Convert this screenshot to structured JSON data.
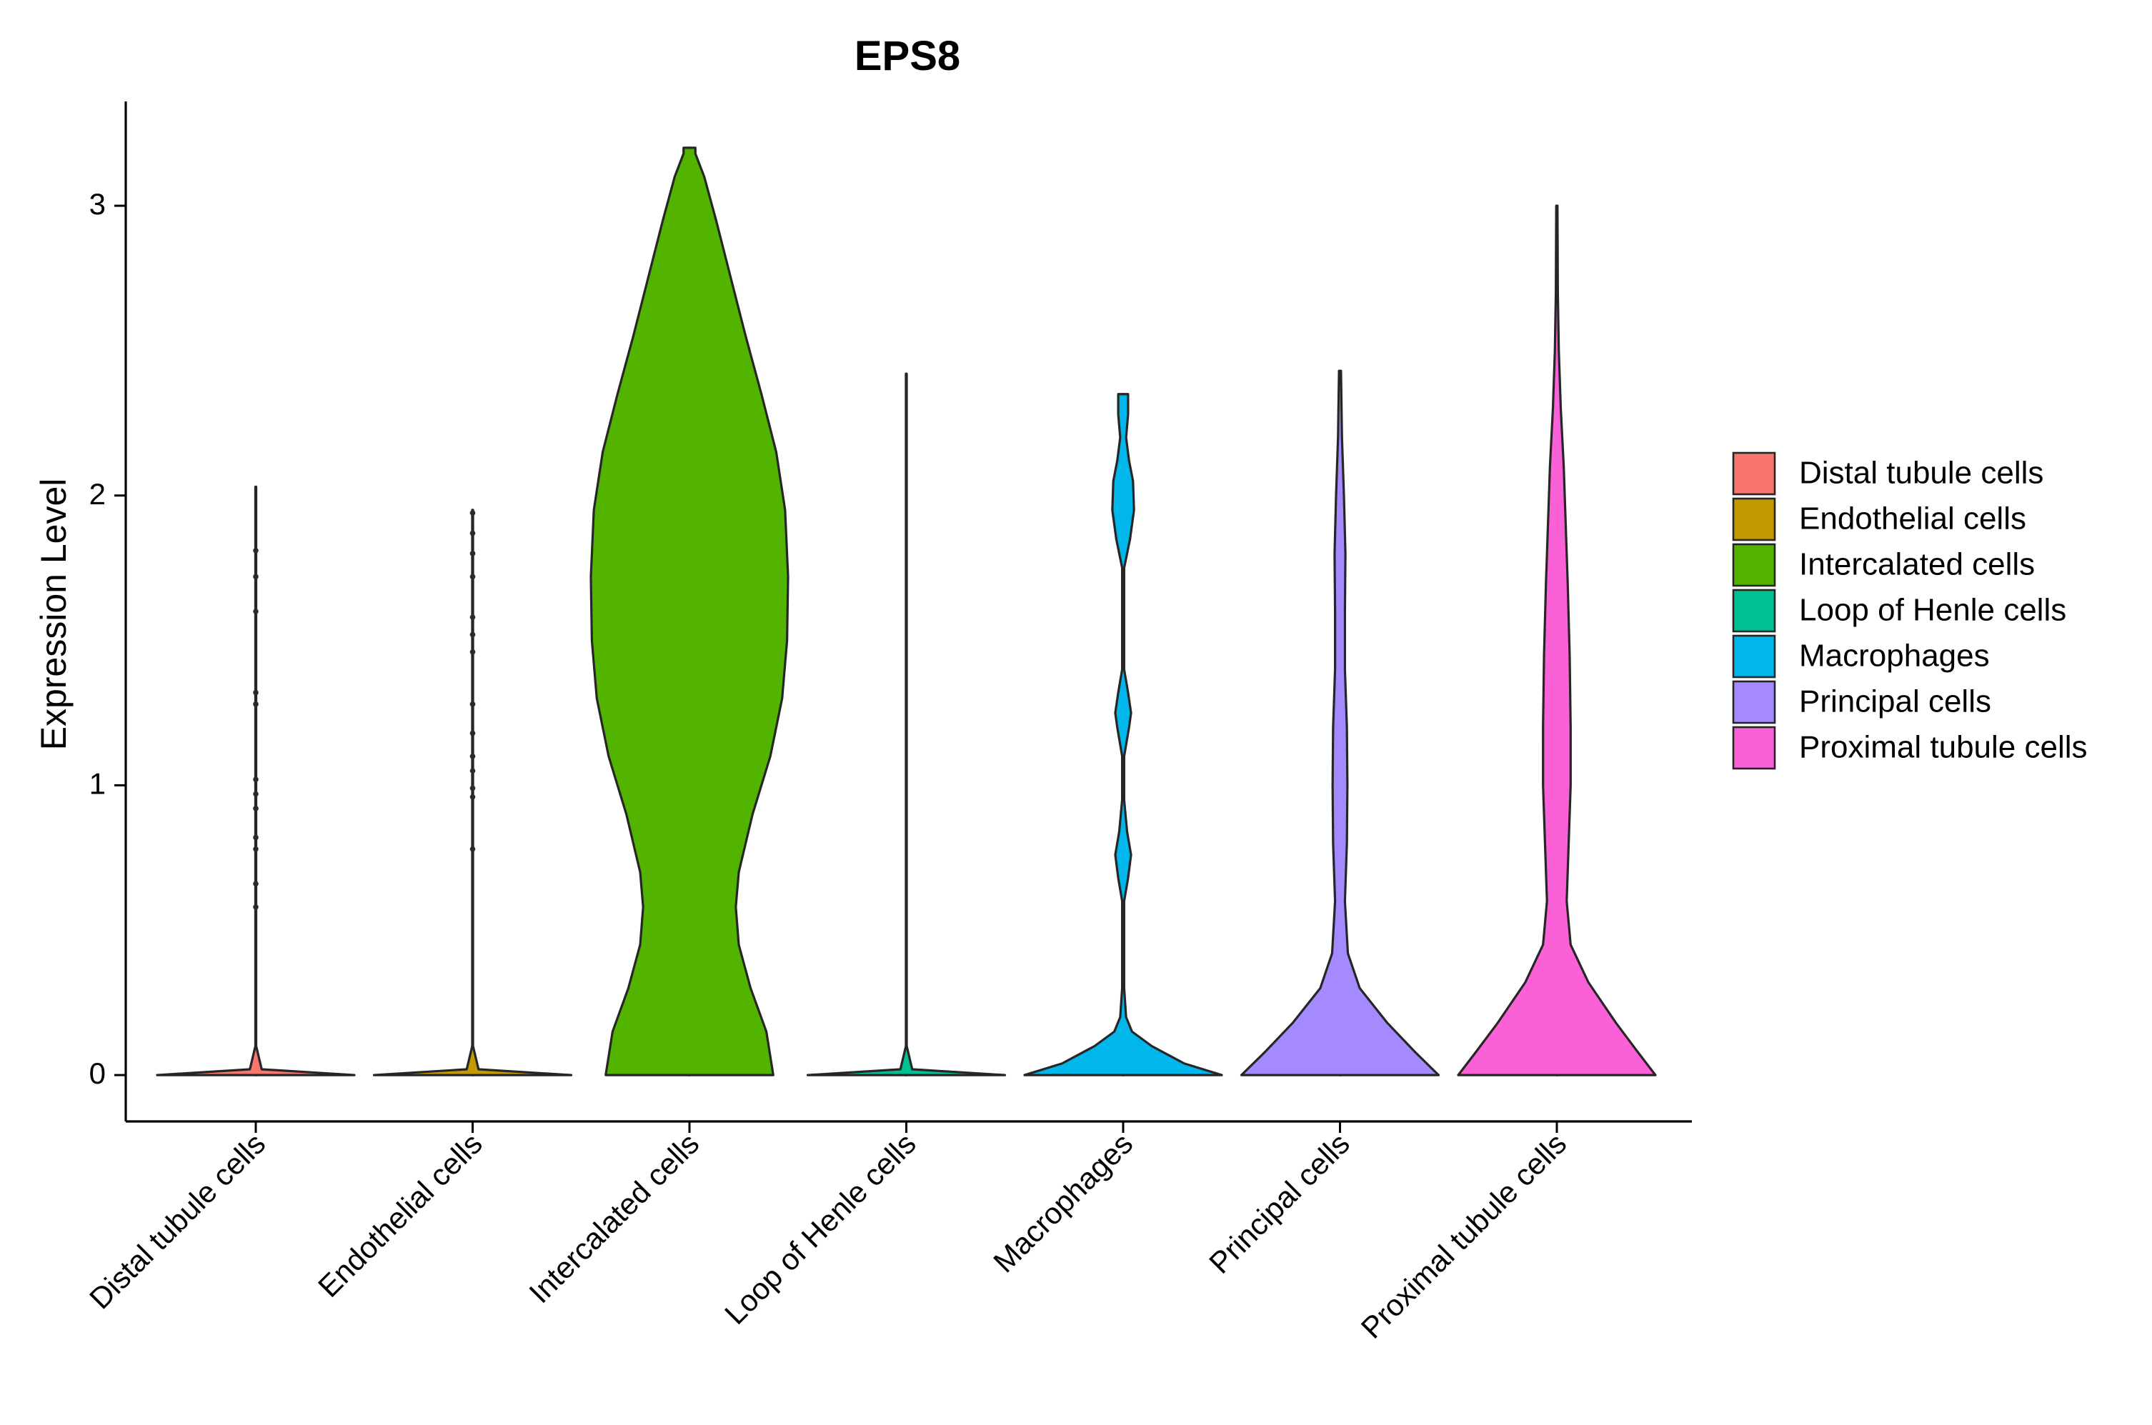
{
  "chart_data": {
    "type": "violin",
    "title": "EPS8",
    "xlabel": "",
    "ylabel": "Expression Level",
    "ylim": [
      -0.16,
      3.36
    ],
    "yticks": [
      0,
      1,
      2,
      3
    ],
    "categories": [
      "Distal tubule cells",
      "Endothelial cells",
      "Intercalated cells",
      "Loop of Henle cells",
      "Macrophages",
      "Principal cells",
      "Proximal tubule cells"
    ],
    "colors": [
      "#F8766D",
      "#C49A00",
      "#53B400",
      "#00C094",
      "#00B6EB",
      "#A58AFF",
      "#FB61D7"
    ],
    "legend": {
      "position": "right",
      "entries": [
        "Distal tubule cells",
        "Endothelial cells",
        "Intercalated cells",
        "Loop of Henle cells",
        "Macrophages",
        "Principal cells",
        "Proximal tubule cells"
      ]
    },
    "series": [
      {
        "name": "Distal tubule cells",
        "max": 2.03,
        "profile": [
          [
            0,
            1.0
          ],
          [
            0.02,
            0.06
          ],
          [
            0.1,
            0.004
          ],
          [
            2.03,
            0.004
          ]
        ],
        "points": [
          0.58,
          0.66,
          0.78,
          0.82,
          0.92,
          0.97,
          1.02,
          1.28,
          1.32,
          1.6,
          1.72,
          1.81
        ]
      },
      {
        "name": "Endothelial cells",
        "max": 1.95,
        "profile": [
          [
            0,
            1.0
          ],
          [
            0.02,
            0.06
          ],
          [
            0.1,
            0.004
          ],
          [
            1.95,
            0.004
          ]
        ],
        "points": [
          0.78,
          0.96,
          0.99,
          1.05,
          1.1,
          1.18,
          1.28,
          1.46,
          1.52,
          1.58,
          1.72,
          1.8,
          1.87,
          1.94
        ]
      },
      {
        "name": "Intercalated cells",
        "max": 3.2,
        "profile": [
          [
            0,
            0.85
          ],
          [
            0.15,
            0.78
          ],
          [
            0.3,
            0.62
          ],
          [
            0.45,
            0.5
          ],
          [
            0.58,
            0.47
          ],
          [
            0.7,
            0.5
          ],
          [
            0.9,
            0.64
          ],
          [
            1.1,
            0.82
          ],
          [
            1.3,
            0.94
          ],
          [
            1.5,
            0.99
          ],
          [
            1.72,
            1.0
          ],
          [
            1.95,
            0.97
          ],
          [
            2.15,
            0.88
          ],
          [
            2.35,
            0.73
          ],
          [
            2.55,
            0.57
          ],
          [
            2.75,
            0.42
          ],
          [
            2.95,
            0.27
          ],
          [
            3.1,
            0.15
          ],
          [
            3.18,
            0.06
          ],
          [
            3.2,
            0.06
          ]
        ],
        "points": []
      },
      {
        "name": "Loop of Henle cells",
        "max": 2.42,
        "profile": [
          [
            0,
            1.0
          ],
          [
            0.02,
            0.06
          ],
          [
            0.1,
            0.004
          ],
          [
            2.42,
            0.004
          ]
        ],
        "points": []
      },
      {
        "name": "Macrophages",
        "max": 2.35,
        "profile": [
          [
            0,
            1.0
          ],
          [
            0.04,
            0.62
          ],
          [
            0.1,
            0.29
          ],
          [
            0.15,
            0.09
          ],
          [
            0.2,
            0.03
          ],
          [
            0.3,
            0.01
          ],
          [
            0.6,
            0.01
          ],
          [
            0.68,
            0.05
          ],
          [
            0.76,
            0.08
          ],
          [
            0.84,
            0.04
          ],
          [
            0.95,
            0.01
          ],
          [
            1.1,
            0.01
          ],
          [
            1.2,
            0.06
          ],
          [
            1.25,
            0.08
          ],
          [
            1.32,
            0.05
          ],
          [
            1.4,
            0.01
          ],
          [
            1.75,
            0.01
          ],
          [
            1.85,
            0.07
          ],
          [
            1.95,
            0.11
          ],
          [
            2.05,
            0.1
          ],
          [
            2.12,
            0.06
          ],
          [
            2.2,
            0.03
          ],
          [
            2.28,
            0.05
          ],
          [
            2.35,
            0.05
          ]
        ],
        "points": []
      },
      {
        "name": "Principal cells",
        "max": 2.43,
        "profile": [
          [
            0,
            1.0
          ],
          [
            0.08,
            0.76
          ],
          [
            0.18,
            0.48
          ],
          [
            0.3,
            0.2
          ],
          [
            0.42,
            0.08
          ],
          [
            0.6,
            0.05
          ],
          [
            0.8,
            0.07
          ],
          [
            1.0,
            0.075
          ],
          [
            1.2,
            0.07
          ],
          [
            1.4,
            0.05
          ],
          [
            1.6,
            0.05
          ],
          [
            1.8,
            0.055
          ],
          [
            2.0,
            0.04
          ],
          [
            2.2,
            0.02
          ],
          [
            2.43,
            0.01
          ]
        ],
        "points": []
      },
      {
        "name": "Proximal tubule cells",
        "max": 3.0,
        "profile": [
          [
            0,
            1.0
          ],
          [
            0.08,
            0.82
          ],
          [
            0.18,
            0.6
          ],
          [
            0.32,
            0.32
          ],
          [
            0.45,
            0.14
          ],
          [
            0.6,
            0.1
          ],
          [
            0.8,
            0.12
          ],
          [
            1.0,
            0.14
          ],
          [
            1.2,
            0.14
          ],
          [
            1.45,
            0.13
          ],
          [
            1.7,
            0.11
          ],
          [
            1.9,
            0.09
          ],
          [
            2.1,
            0.07
          ],
          [
            2.3,
            0.04
          ],
          [
            2.5,
            0.02
          ],
          [
            2.7,
            0.01
          ],
          [
            3.0,
            0.006
          ]
        ],
        "points": []
      }
    ]
  }
}
